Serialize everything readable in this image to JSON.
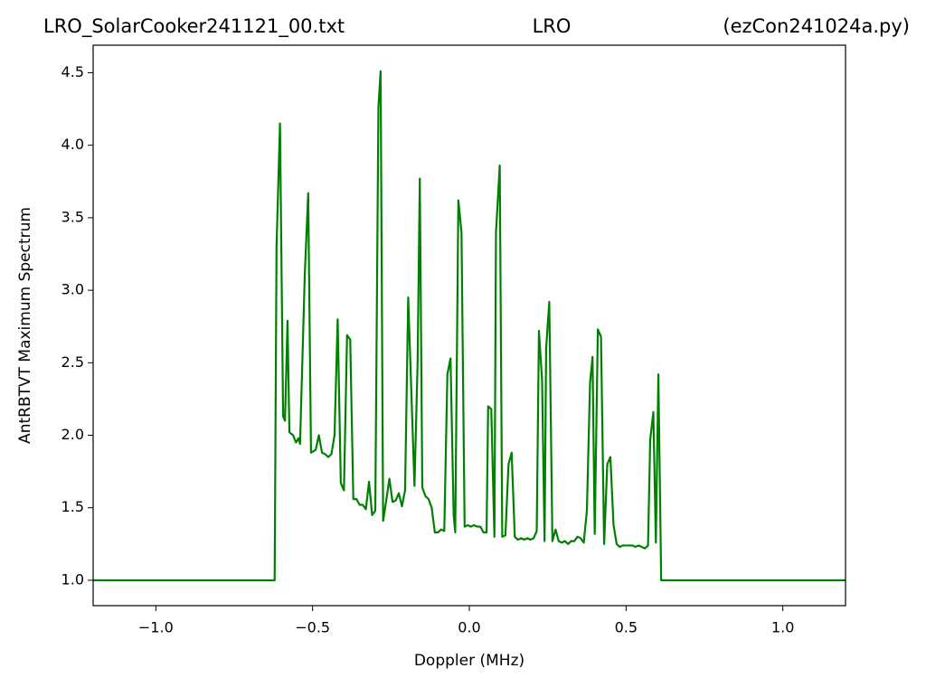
{
  "chart_data": {
    "type": "line",
    "title_left": "LRO_SolarCooker241121_00.txt",
    "title_center": "LRO",
    "title_right": "(ezCon241024a.py)",
    "xlabel": "Doppler (MHz)",
    "ylabel": "AntRBTVT Maximum Spectrum",
    "xlim": [
      -1.2,
      1.2
    ],
    "ylim": [
      0.825,
      4.69
    ],
    "xticks": [
      {
        "value": -1,
        "label": "−1.0"
      },
      {
        "value": -0.5,
        "label": "−0.5"
      },
      {
        "value": 0,
        "label": "0.0"
      },
      {
        "value": 0.5,
        "label": "0.5"
      },
      {
        "value": 1,
        "label": "1.0"
      }
    ],
    "yticks": [
      {
        "value": 1,
        "label": "1.0"
      },
      1.5,
      {
        "value": 2,
        "label": "2.0"
      },
      2.5,
      {
        "value": 3,
        "label": "3.0"
      },
      3.5,
      {
        "value": 4,
        "label": "4.0"
      },
      4.5
    ],
    "grid": false,
    "x": [
      -1.2,
      -0.621,
      -0.615,
      -0.604,
      -0.594,
      -0.588,
      -0.58,
      -0.574,
      -0.562,
      -0.553,
      -0.545,
      -0.54,
      -0.525,
      -0.514,
      -0.505,
      -0.49,
      -0.48,
      -0.47,
      -0.46,
      -0.45,
      -0.44,
      -0.43,
      -0.42,
      -0.41,
      -0.4,
      -0.39,
      -0.38,
      -0.37,
      -0.36,
      -0.35,
      -0.34,
      -0.33,
      -0.32,
      -0.31,
      -0.3,
      -0.29,
      -0.283,
      -0.275,
      -0.265,
      -0.255,
      -0.245,
      -0.235,
      -0.225,
      -0.215,
      -0.205,
      -0.195,
      -0.185,
      -0.175,
      -0.165,
      -0.158,
      -0.15,
      -0.14,
      -0.13,
      -0.12,
      -0.11,
      -0.1,
      -0.09,
      -0.08,
      -0.07,
      -0.06,
      -0.05,
      -0.045,
      -0.035,
      -0.025,
      -0.015,
      -0.005,
      0.005,
      0.015,
      0.025,
      0.035,
      0.045,
      0.055,
      0.06,
      0.07,
      0.08,
      0.085,
      0.097,
      0.105,
      0.115,
      0.125,
      0.135,
      0.145,
      0.155,
      0.165,
      0.175,
      0.185,
      0.195,
      0.205,
      0.215,
      0.222,
      0.232,
      0.24,
      0.245,
      0.255,
      0.265,
      0.275,
      0.285,
      0.295,
      0.305,
      0.315,
      0.325,
      0.335,
      0.345,
      0.355,
      0.365,
      0.375,
      0.385,
      0.393,
      0.4,
      0.41,
      0.42,
      0.43,
      0.44,
      0.45,
      0.46,
      0.47,
      0.48,
      0.49,
      0.5,
      0.51,
      0.52,
      0.53,
      0.54,
      0.55,
      0.56,
      0.57,
      0.577,
      0.587,
      0.595,
      0.603,
      0.612,
      1.2
    ],
    "series": [
      {
        "color": "#008000",
        "values": [
          1.0,
          1.0,
          3.3,
          4.15,
          2.13,
          2.1,
          2.79,
          2.02,
          2.0,
          1.95,
          1.98,
          1.94,
          3.1,
          3.67,
          1.88,
          1.9,
          2.0,
          1.88,
          1.87,
          1.85,
          1.87,
          2.0,
          2.8,
          1.67,
          1.62,
          2.69,
          2.66,
          1.56,
          1.56,
          1.52,
          1.52,
          1.49,
          1.68,
          1.45,
          1.48,
          4.26,
          4.51,
          1.41,
          1.55,
          1.7,
          1.54,
          1.55,
          1.6,
          1.51,
          1.62,
          2.95,
          2.3,
          1.65,
          2.5,
          3.77,
          1.64,
          1.58,
          1.56,
          1.5,
          1.33,
          1.33,
          1.35,
          1.34,
          2.42,
          2.53,
          1.45,
          1.33,
          3.62,
          3.4,
          1.37,
          1.38,
          1.37,
          1.38,
          1.37,
          1.37,
          1.33,
          1.33,
          2.2,
          2.18,
          1.3,
          3.4,
          3.86,
          1.3,
          1.31,
          1.8,
          1.88,
          1.3,
          1.28,
          1.29,
          1.28,
          1.29,
          1.28,
          1.29,
          1.34,
          2.72,
          2.38,
          1.27,
          2.6,
          2.92,
          1.27,
          1.35,
          1.27,
          1.26,
          1.27,
          1.25,
          1.27,
          1.27,
          1.3,
          1.29,
          1.26,
          1.48,
          2.36,
          2.54,
          1.32,
          2.73,
          2.68,
          1.25,
          1.8,
          1.85,
          1.38,
          1.25,
          1.23,
          1.24,
          1.24,
          1.24,
          1.24,
          1.23,
          1.24,
          1.23,
          1.22,
          1.24,
          1.97,
          2.16,
          1.26,
          2.42,
          1.0,
          1.0
        ]
      }
    ]
  }
}
